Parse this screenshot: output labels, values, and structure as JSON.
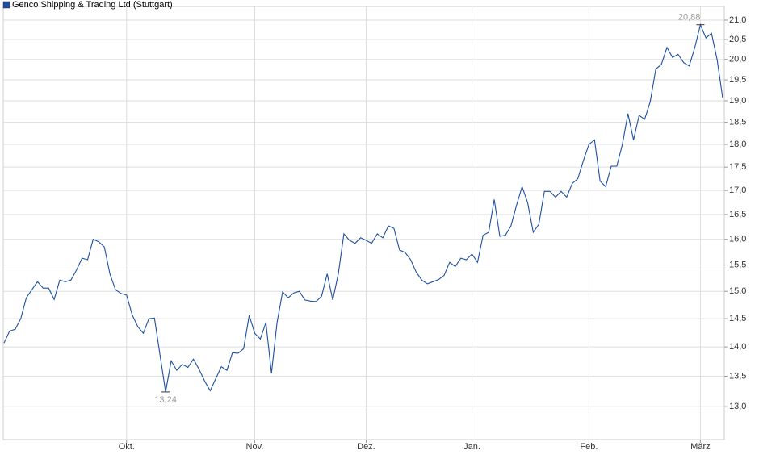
{
  "chart_data": {
    "type": "line",
    "series": [
      {
        "name": "Genco Shipping & Trading Ltd (Stuttgart)",
        "color": "#1c4fa1",
        "values": [
          14.07,
          14.28,
          14.31,
          14.5,
          14.88,
          15.03,
          15.18,
          15.06,
          15.06,
          14.85,
          15.21,
          15.18,
          15.21,
          15.4,
          15.63,
          15.6,
          16.0,
          15.95,
          15.85,
          15.33,
          15.03,
          14.96,
          14.93,
          14.57,
          14.36,
          14.24,
          14.5,
          14.51,
          13.86,
          13.24,
          13.76,
          13.6,
          13.7,
          13.65,
          13.79,
          13.62,
          13.42,
          13.26,
          13.46,
          13.66,
          13.6,
          13.9,
          13.89,
          13.97,
          14.56,
          14.24,
          14.14,
          14.43,
          13.55,
          14.43,
          14.99,
          14.88,
          14.97,
          15.0,
          14.84,
          14.82,
          14.81,
          14.91,
          15.33,
          14.84,
          15.33,
          16.11,
          15.98,
          15.92,
          16.03,
          15.98,
          15.92,
          16.11,
          16.03,
          16.27,
          16.22,
          15.79,
          15.74,
          15.6,
          15.36,
          15.21,
          15.14,
          15.18,
          15.22,
          15.3,
          15.55,
          15.47,
          15.63,
          15.6,
          15.71,
          15.55,
          16.08,
          16.14,
          16.81,
          16.06,
          16.08,
          16.27,
          16.69,
          17.08,
          16.74,
          16.14,
          16.3,
          16.98,
          16.98,
          16.86,
          16.98,
          16.86,
          17.15,
          17.25,
          17.64,
          18.0,
          18.1,
          17.2,
          17.08,
          17.52,
          17.52,
          18.0,
          18.7,
          18.1,
          18.66,
          18.57,
          18.98,
          19.76,
          19.88,
          20.3,
          20.05,
          20.13,
          19.92,
          19.84,
          20.3,
          20.88,
          20.54,
          20.66,
          20.0,
          19.07
        ]
      }
    ],
    "categories": [
      null,
      null,
      null,
      null,
      null,
      null,
      null,
      null,
      null,
      null,
      null,
      null,
      null,
      null,
      null,
      null,
      null,
      null,
      null,
      null,
      null,
      null,
      "Okt.",
      null,
      null,
      null,
      null,
      null,
      null,
      null,
      null,
      null,
      null,
      null,
      null,
      null,
      null,
      null,
      null,
      null,
      null,
      null,
      null,
      null,
      null,
      "Nov.",
      null,
      null,
      null,
      null,
      null,
      null,
      null,
      null,
      null,
      null,
      null,
      null,
      null,
      null,
      null,
      null,
      null,
      null,
      null,
      "Dez.",
      null,
      null,
      null,
      null,
      null,
      null,
      null,
      null,
      null,
      null,
      null,
      null,
      null,
      null,
      null,
      null,
      null,
      null,
      "Jan.",
      null,
      null,
      null,
      null,
      null,
      null,
      null,
      null,
      null,
      null,
      null,
      null,
      null,
      null,
      null,
      null,
      null,
      null,
      null,
      null,
      "Feb.",
      null,
      null,
      null,
      null,
      null,
      null,
      null,
      null,
      null,
      null,
      null,
      null,
      null,
      null,
      null,
      null,
      null,
      null,
      null,
      "März",
      null,
      null,
      null,
      null
    ],
    "ylim": [
      12.48,
      21.36
    ],
    "log": true,
    "grid": true,
    "yticks": [
      {
        "value": 13,
        "label": "13,0"
      },
      {
        "value": 13.5,
        "label": "13,5"
      },
      {
        "value": 14,
        "label": "14,0"
      },
      {
        "value": 14.5,
        "label": "14,5"
      },
      {
        "value": 15,
        "label": "15,0"
      },
      {
        "value": 15.5,
        "label": "15,5"
      },
      {
        "value": 16,
        "label": "16,0"
      },
      {
        "value": 16.5,
        "label": "16,5"
      },
      {
        "value": 17,
        "label": "17,0"
      },
      {
        "value": 17.5,
        "label": "17,5"
      },
      {
        "value": 18,
        "label": "18,0"
      },
      {
        "value": 18.5,
        "label": "18,5"
      },
      {
        "value": 19,
        "label": "19,0"
      },
      {
        "value": 19.5,
        "label": "19,5"
      },
      {
        "value": 20,
        "label": "20,0"
      },
      {
        "value": 20.5,
        "label": "20,5"
      },
      {
        "value": 21,
        "label": "21,0"
      }
    ],
    "annotations": [
      {
        "value": 20.88,
        "label": "20,88"
      },
      {
        "value": 13.24,
        "label": "13,24"
      }
    ]
  }
}
